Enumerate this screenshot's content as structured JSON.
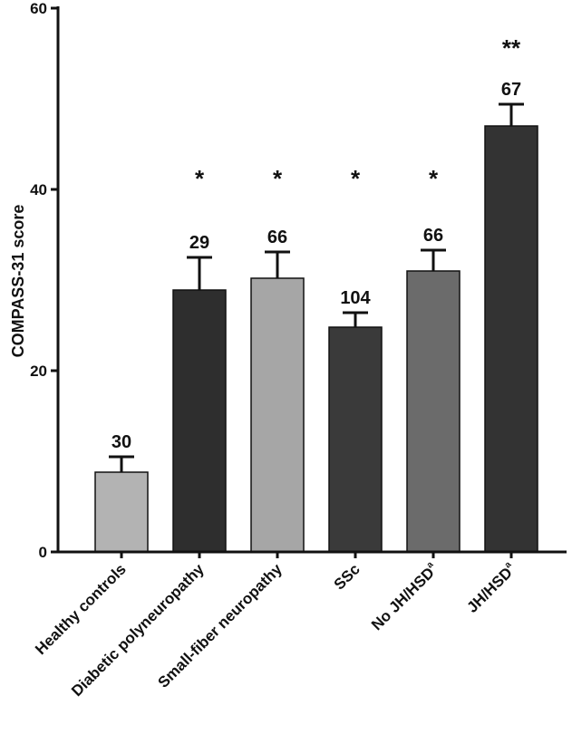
{
  "chart_data": {
    "type": "bar",
    "ylabel": "COMPASS-31 score",
    "ylim": [
      0,
      60
    ],
    "yticks": [
      "0",
      "20",
      "40",
      "60"
    ],
    "categories": [
      {
        "label": "Healthy controls",
        "sup": ""
      },
      {
        "label": "Diabetic polyneuropathy",
        "sup": ""
      },
      {
        "label": "Small-fiber neuropathy",
        "sup": ""
      },
      {
        "label": "SSc",
        "sup": ""
      },
      {
        "label": "No JH/HSD",
        "sup": "a"
      },
      {
        "label": "JH/HSD",
        "sup": "a"
      }
    ],
    "values": [
      8.8,
      28.9,
      30.2,
      24.8,
      31.0,
      47.0
    ],
    "error_upper": [
      10.5,
      32.5,
      33.1,
      26.4,
      33.3,
      49.4
    ],
    "n_labels": [
      "30",
      "29",
      "66",
      "104",
      "66",
      "67"
    ],
    "significance": [
      "",
      "*",
      "*",
      "*",
      "*",
      "**"
    ],
    "colors": [
      "#b3b3b3",
      "#2e2e2e",
      "#a6a6a6",
      "#3a3a3a",
      "#6b6b6b",
      "#333333"
    ]
  }
}
